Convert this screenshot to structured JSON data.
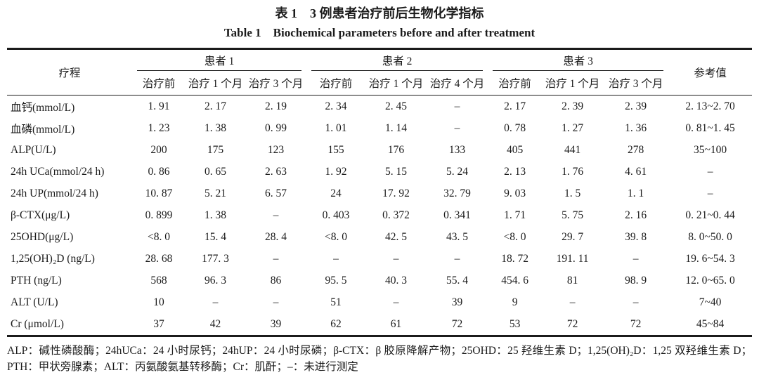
{
  "page": {
    "title_cn": "表 1　3 例患者治疗前后生物化学指标",
    "title_en": "Table 1　Biochemical parameters before and after treatment"
  },
  "table": {
    "header": {
      "course_label": "疗程",
      "reference_label": "参考值",
      "groups": [
        {
          "label": "患者 1",
          "cols": [
            "治疗前",
            "治疗 1 个月",
            "治疗 3 个月"
          ]
        },
        {
          "label": "患者 2",
          "cols": [
            "治疗前",
            "治疗 1 个月",
            "治疗 4 个月"
          ]
        },
        {
          "label": "患者 3",
          "cols": [
            "治疗前",
            "治疗 1 个月",
            "治疗 3 个月"
          ]
        }
      ]
    },
    "rows": [
      {
        "label": "血钙(mmol/L)",
        "values": [
          "1. 91",
          "2. 17",
          "2. 19",
          "2. 34",
          "2. 45",
          "–",
          "2. 17",
          "2. 39",
          "2. 39"
        ],
        "reference": "2. 13~2. 70"
      },
      {
        "label": "血磷(mmol/L)",
        "values": [
          "1. 23",
          "1. 38",
          "0. 99",
          "1. 01",
          "1. 14",
          "–",
          "0. 78",
          "1. 27",
          "1. 36"
        ],
        "reference": "0. 81~1. 45"
      },
      {
        "label": "ALP(U/L)",
        "values": [
          "200",
          "175",
          "123",
          "155",
          "176",
          "133",
          "405",
          "441",
          "278"
        ],
        "reference": "35~100"
      },
      {
        "label": "24h UCa(mmol/24 h)",
        "values": [
          "0. 86",
          "0. 65",
          "2. 63",
          "1. 92",
          "5. 15",
          "5. 24",
          "2. 13",
          "1. 76",
          "4. 61"
        ],
        "reference": "–"
      },
      {
        "label": "24h UP(mmol/24 h)",
        "values": [
          "10. 87",
          "5. 21",
          "6. 57",
          "24",
          "17. 92",
          "32. 79",
          "9. 03",
          "1. 5",
          "1. 1"
        ],
        "reference": "–"
      },
      {
        "label": "β-CTX(μg/L)",
        "values": [
          "0. 899",
          "1. 38",
          "–",
          "0. 403",
          "0. 372",
          "0. 341",
          "1. 71",
          "5. 75",
          "2. 16"
        ],
        "reference": "0. 21~0. 44"
      },
      {
        "label": "25OHD(μg/L)",
        "values": [
          "<8. 0",
          "15. 4",
          "28. 4",
          "<8. 0",
          "42. 5",
          "43. 5",
          "<8. 0",
          "29. 7",
          "39. 8"
        ],
        "reference": "8. 0~50. 0"
      },
      {
        "label": "1,25(OH)₂D (ng/L)",
        "values": [
          "28. 68",
          "177. 3",
          "–",
          "–",
          "–",
          "–",
          "18. 72",
          "191. 11",
          "–"
        ],
        "reference": "19. 6~54. 3"
      },
      {
        "label": "PTH (ng/L)",
        "values": [
          "568",
          "96. 3",
          "86",
          "95. 5",
          "40. 3",
          "55. 4",
          "454. 6",
          "81",
          "98. 9"
        ],
        "reference": "12. 0~65. 0"
      },
      {
        "label": "ALT (U/L)",
        "values": [
          "10",
          "–",
          "–",
          "51",
          "–",
          "39",
          "9",
          "–",
          "–"
        ],
        "reference": "7~40"
      },
      {
        "label": "Cr (μmol/L)",
        "values": [
          "37",
          "42",
          "39",
          "62",
          "61",
          "72",
          "53",
          "72",
          "72"
        ],
        "reference": "45~84"
      }
    ]
  },
  "footnote": "ALP：碱性磷酸酶；24hUCa：24 小时尿钙；24hUP：24 小时尿磷；β-CTX：β 胶原降解产物；25OHD：25 羟维生素 D；1,25(OH)₂D：1,25 双羟维生素 D；PTH：甲状旁腺素；ALT：丙氨酸氨基转移酶；Cr：肌酐；–：未进行测定",
  "colors": {
    "text": "#1b1b1b",
    "rule": "#1b1b1b",
    "background": "#ffffff"
  }
}
